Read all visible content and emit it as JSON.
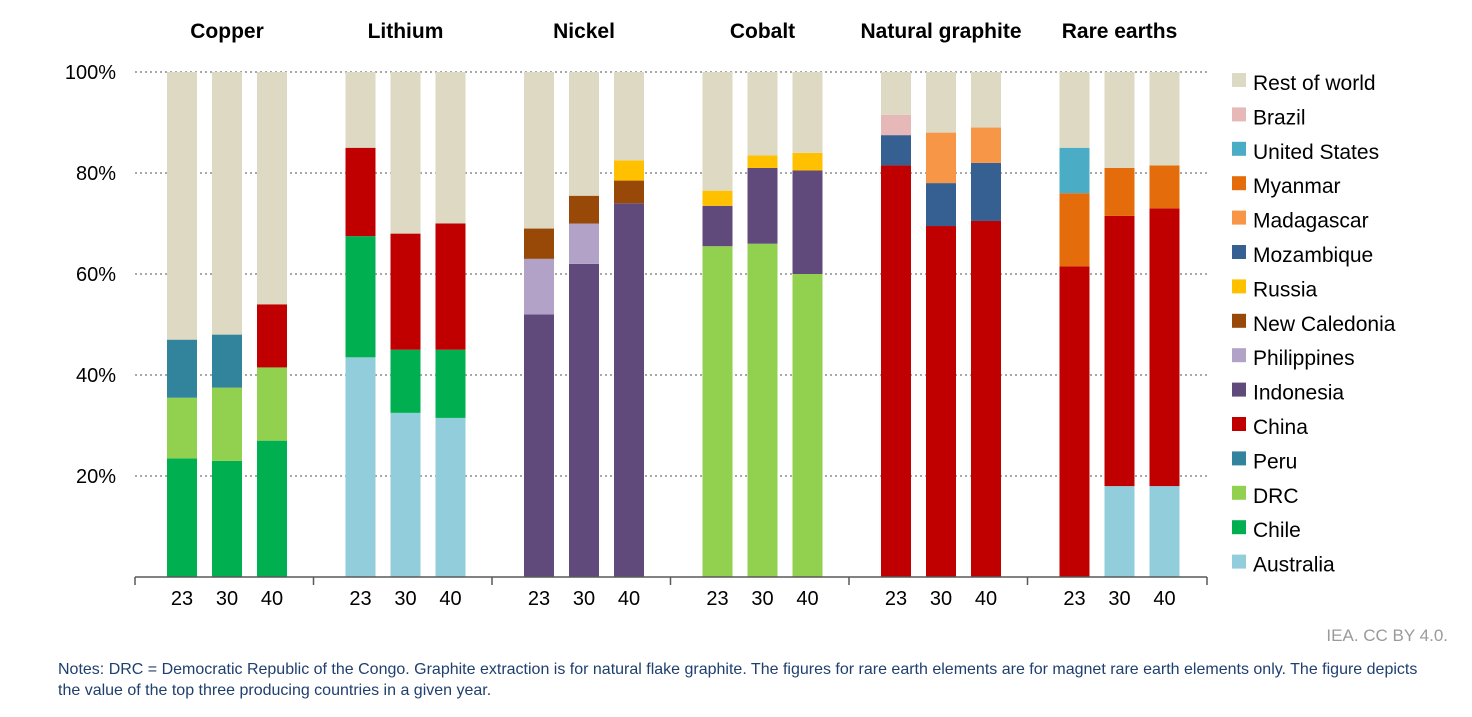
{
  "chart_data": {
    "type": "bar",
    "stacked": true,
    "ylim": [
      0,
      100
    ],
    "y_ticks": [
      "20%",
      "40%",
      "60%",
      "80%",
      "100%"
    ],
    "y_tick_values": [
      20,
      40,
      60,
      80,
      100
    ],
    "grid": "dotted horizontal",
    "legend_placement": "right",
    "colors": {
      "Australia": "#92CDDC",
      "Chile": "#00B050",
      "DRC": "#92D050",
      "Peru": "#31849B",
      "China": "#C00000",
      "Indonesia": "#604A7B",
      "Philippines": "#B3A2C7",
      "New Caledonia": "#984807",
      "Russia": "#FFC000",
      "Mozambique": "#376092",
      "Madagascar": "#F79646",
      "Myanmar": "#E46C0A",
      "United States": "#4BACC6",
      "Brazil": "#E6B9B8",
      "Rest of world": "#DDD9C3"
    },
    "legend": [
      "Rest of world",
      "Brazil",
      "United States",
      "Myanmar",
      "Madagascar",
      "Mozambique",
      "Russia",
      "New Caledonia",
      "Philippines",
      "Indonesia",
      "China",
      "Peru",
      "DRC",
      "Chile",
      "Australia"
    ],
    "groups": [
      {
        "title": "Copper",
        "bars": [
          {
            "year": "23",
            "segments": [
              {
                "name": "Chile",
                "value": 23.5
              },
              {
                "name": "DRC",
                "value": 12
              },
              {
                "name": "Peru",
                "value": 11.5
              },
              {
                "name": "Rest of world",
                "value": 53
              }
            ]
          },
          {
            "year": "30",
            "segments": [
              {
                "name": "Chile",
                "value": 23
              },
              {
                "name": "DRC",
                "value": 14.5
              },
              {
                "name": "Peru",
                "value": 10.5
              },
              {
                "name": "Rest of world",
                "value": 52
              }
            ]
          },
          {
            "year": "40",
            "segments": [
              {
                "name": "Chile",
                "value": 27
              },
              {
                "name": "DRC",
                "value": 14.5
              },
              {
                "name": "China",
                "value": 12.5
              },
              {
                "name": "Rest of world",
                "value": 46
              }
            ]
          }
        ]
      },
      {
        "title": "Lithium",
        "bars": [
          {
            "year": "23",
            "segments": [
              {
                "name": "Australia",
                "value": 43.5
              },
              {
                "name": "Chile",
                "value": 24
              },
              {
                "name": "China",
                "value": 17.5
              },
              {
                "name": "Rest of world",
                "value": 15
              }
            ]
          },
          {
            "year": "30",
            "segments": [
              {
                "name": "Australia",
                "value": 32.5
              },
              {
                "name": "Chile",
                "value": 12.5
              },
              {
                "name": "China",
                "value": 23
              },
              {
                "name": "Rest of world",
                "value": 32
              }
            ]
          },
          {
            "year": "40",
            "segments": [
              {
                "name": "Australia",
                "value": 31.5
              },
              {
                "name": "Chile",
                "value": 13.5
              },
              {
                "name": "China",
                "value": 25
              },
              {
                "name": "Rest of world",
                "value": 30
              }
            ]
          }
        ]
      },
      {
        "title": "Nickel",
        "bars": [
          {
            "year": "23",
            "segments": [
              {
                "name": "Indonesia",
                "value": 52
              },
              {
                "name": "Philippines",
                "value": 11
              },
              {
                "name": "New Caledonia",
                "value": 6
              },
              {
                "name": "Rest of world",
                "value": 31
              }
            ]
          },
          {
            "year": "30",
            "segments": [
              {
                "name": "Indonesia",
                "value": 62
              },
              {
                "name": "Philippines",
                "value": 8
              },
              {
                "name": "New Caledonia",
                "value": 5.5
              },
              {
                "name": "Rest of world",
                "value": 24.5
              }
            ]
          },
          {
            "year": "40",
            "segments": [
              {
                "name": "Indonesia",
                "value": 74
              },
              {
                "name": "New Caledonia",
                "value": 4.5
              },
              {
                "name": "Russia",
                "value": 4
              },
              {
                "name": "Rest of world",
                "value": 17.5
              }
            ]
          }
        ]
      },
      {
        "title": "Cobalt",
        "bars": [
          {
            "year": "23",
            "segments": [
              {
                "name": "DRC",
                "value": 65.5
              },
              {
                "name": "Indonesia",
                "value": 8
              },
              {
                "name": "Russia",
                "value": 3
              },
              {
                "name": "Rest of world",
                "value": 23.5
              }
            ]
          },
          {
            "year": "30",
            "segments": [
              {
                "name": "DRC",
                "value": 66
              },
              {
                "name": "Indonesia",
                "value": 15
              },
              {
                "name": "Russia",
                "value": 2.5
              },
              {
                "name": "Rest of world",
                "value": 16.5
              }
            ]
          },
          {
            "year": "40",
            "segments": [
              {
                "name": "DRC",
                "value": 60
              },
              {
                "name": "Indonesia",
                "value": 20.5
              },
              {
                "name": "Russia",
                "value": 3.5
              },
              {
                "name": "Rest of world",
                "value": 16
              }
            ]
          }
        ]
      },
      {
        "title": "Natural graphite",
        "bars": [
          {
            "year": "23",
            "segments": [
              {
                "name": "China",
                "value": 81.5
              },
              {
                "name": "Mozambique",
                "value": 6
              },
              {
                "name": "Brazil",
                "value": 4
              },
              {
                "name": "Rest of world",
                "value": 8.5
              }
            ]
          },
          {
            "year": "30",
            "segments": [
              {
                "name": "China",
                "value": 69.5
              },
              {
                "name": "Mozambique",
                "value": 8.5
              },
              {
                "name": "Madagascar",
                "value": 10
              },
              {
                "name": "Rest of world",
                "value": 12
              }
            ]
          },
          {
            "year": "40",
            "segments": [
              {
                "name": "China",
                "value": 70.5
              },
              {
                "name": "Mozambique",
                "value": 11.5
              },
              {
                "name": "Madagascar",
                "value": 7
              },
              {
                "name": "Rest of world",
                "value": 11
              }
            ]
          }
        ]
      },
      {
        "title": "Rare earths",
        "bars": [
          {
            "year": "23",
            "segments": [
              {
                "name": "China",
                "value": 61.5
              },
              {
                "name": "Myanmar",
                "value": 14.5
              },
              {
                "name": "United States",
                "value": 9
              },
              {
                "name": "Rest of world",
                "value": 15
              }
            ]
          },
          {
            "year": "30",
            "segments": [
              {
                "name": "Australia",
                "value": 18
              },
              {
                "name": "China",
                "value": 53.5
              },
              {
                "name": "Myanmar",
                "value": 9.5
              },
              {
                "name": "Rest of world",
                "value": 19
              }
            ]
          },
          {
            "year": "40",
            "segments": [
              {
                "name": "Australia",
                "value": 18
              },
              {
                "name": "China",
                "value": 55
              },
              {
                "name": "Myanmar",
                "value": 8.5
              },
              {
                "name": "Rest of world",
                "value": 18.5
              }
            ]
          }
        ]
      }
    ]
  },
  "credit": "IEA. CC BY 4.0.",
  "notes": "Notes: DRC = Democratic Republic of the Congo. Graphite extraction is for natural flake graphite. The figures for rare earth elements are for magnet rare earth elements only. The figure depicts the value of the top three producing countries in a given year."
}
